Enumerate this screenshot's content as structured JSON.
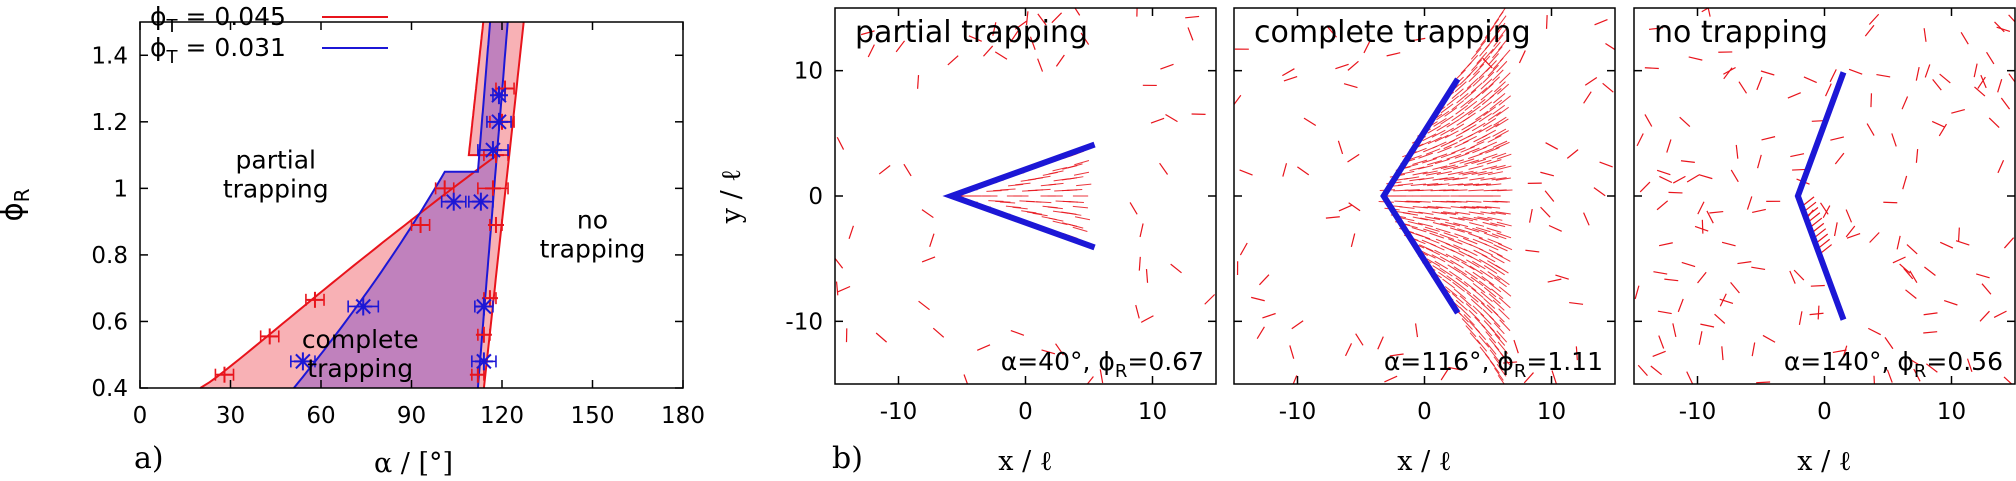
{
  "panel_labels": [
    "a)",
    "b)"
  ],
  "chart_data": [
    {
      "type": "line",
      "xlabel": "α / [°]",
      "ylabel": "ϕ",
      "ylabel_sub": "R",
      "xlim": [
        0,
        180
      ],
      "ylim": [
        0.4,
        1.5
      ],
      "xticks": [
        0,
        30,
        60,
        90,
        120,
        150,
        180
      ],
      "yticks": [
        0.4,
        0.6,
        0.8,
        1.0,
        1.2,
        1.4
      ],
      "ytick_labels": [
        "0.4",
        "0.6",
        "0.8",
        "1",
        "1.2",
        "1.4"
      ],
      "legend_position": "top-left",
      "regions": [
        {
          "text": [
            "partial",
            "trapping"
          ],
          "x": 45,
          "y": 1.06
        },
        {
          "text": [
            "complete",
            "trapping"
          ],
          "x": 73,
          "y": 0.52
        },
        {
          "text": [
            "no",
            "trapping"
          ],
          "x": 150,
          "y": 0.88
        }
      ],
      "series": [
        {
          "name_prefix": "ϕ",
          "name_sub": "T",
          "name_suffix": " = 0.045",
          "color": "#e8141c",
          "left_boundary": [
            {
              "x": 28,
              "y": 0.44,
              "xerr": 3
            },
            {
              "x": 43,
              "y": 0.555,
              "xerr": 3
            },
            {
              "x": 58,
              "y": 0.665,
              "xerr": 3
            },
            {
              "x": 93,
              "y": 0.89,
              "xerr": 3
            },
            {
              "x": 101,
              "y": 1.0,
              "xerr": 3
            }
          ],
          "right_boundary": [
            {
              "x": 112,
              "y": 0.44,
              "xerr": 2
            },
            {
              "x": 114,
              "y": 0.56,
              "xerr": 2
            },
            {
              "x": 116,
              "y": 0.67,
              "xerr": 2
            },
            {
              "x": 118,
              "y": 0.89,
              "xerr": 2
            },
            {
              "x": 117,
              "y": 1.0,
              "xerr": 5
            },
            {
              "x": 118,
              "y": 1.1,
              "xerr": 4
            },
            {
              "x": 120,
              "y": 1.2,
              "xerr": 4
            },
            {
              "x": 121,
              "y": 1.3,
              "xerr": 3
            }
          ]
        },
        {
          "name_prefix": "ϕ",
          "name_sub": "T",
          "name_suffix": " = 0.031",
          "color": "#1c17d6",
          "left_boundary": [
            {
              "x": 54,
              "y": 0.48,
              "xerr": 4
            },
            {
              "x": 74,
              "y": 0.645,
              "xerr": 5
            },
            {
              "x": 104,
              "y": 0.96,
              "xerr": 4
            }
          ],
          "right_boundary": [
            {
              "x": 114,
              "y": 0.48,
              "xerr": 4
            },
            {
              "x": 114,
              "y": 0.645,
              "xerr": 3
            },
            {
              "x": 113,
              "y": 0.96,
              "xerr": 4
            },
            {
              "x": 117,
              "y": 1.115,
              "xerr": 5
            },
            {
              "x": 119,
              "y": 1.2,
              "xerr": 4
            },
            {
              "x": 119,
              "y": 1.28,
              "xerr": 2
            }
          ]
        }
      ],
      "fill_colors": {
        "partial": "#f8b1b5",
        "complete": "#c081bd"
      }
    },
    {
      "type": "scatter",
      "xlabel": "x / ℓ",
      "ylabel": "y / ℓ",
      "xlim": [
        -15,
        15
      ],
      "ylim": [
        -15,
        15
      ],
      "xticks": [
        -10,
        0,
        10
      ],
      "yticks": [
        -10,
        0,
        10
      ],
      "panels": [
        {
          "title": "partial trapping",
          "alpha_deg": 40,
          "phi_r": "0.67",
          "ann_prefix": "α=40°, ϕ",
          "ann_sub": "R",
          "ann_suffix": "=0.67",
          "arm_length": 12,
          "wall_color": "#1c17d6",
          "particle_color": "#e8141c",
          "trapped_fill": "medium"
        },
        {
          "title": "complete trapping",
          "alpha_deg": 116,
          "phi_r": "1.11",
          "ann_prefix": "α=116°, ϕ",
          "ann_sub": "R",
          "ann_suffix": "=1.11",
          "arm_length": 11,
          "wall_color": "#1c17d6",
          "particle_color": "#e8141c",
          "trapped_fill": "full"
        },
        {
          "title": "no trapping",
          "alpha_deg": 140,
          "phi_r": "0.56",
          "ann_prefix": "α=140°, ϕ",
          "ann_sub": "R",
          "ann_suffix": "=0.56",
          "arm_length": 10.5,
          "wall_color": "#1c17d6",
          "particle_color": "#e8141c",
          "trapped_fill": "none"
        }
      ]
    }
  ]
}
